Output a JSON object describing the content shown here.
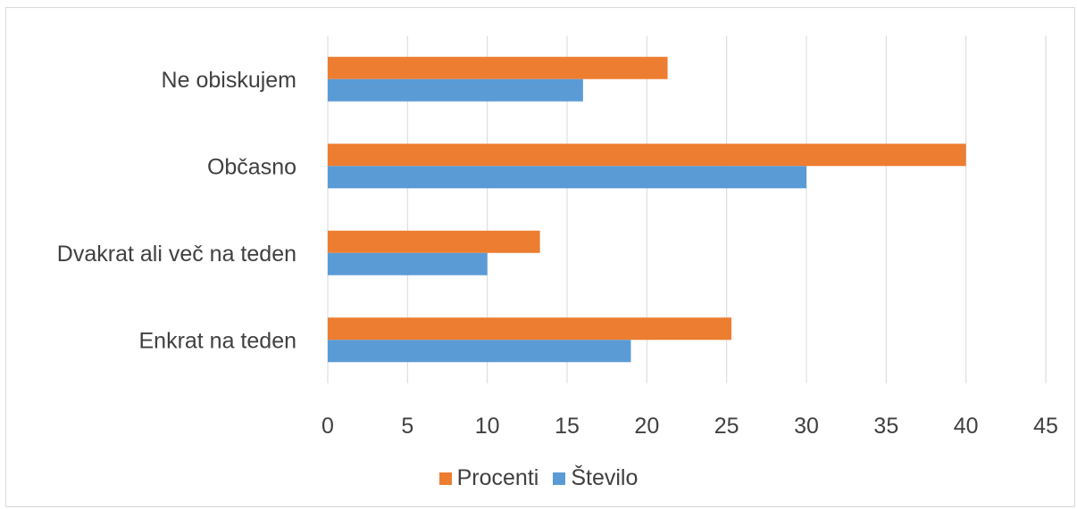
{
  "chart_data": {
    "type": "bar",
    "orientation": "horizontal",
    "categories": [
      "Ne obiskujem",
      "Občasno",
      "Dvakrat ali več na teden",
      "Enkrat na teden"
    ],
    "series": [
      {
        "name": "Procenti",
        "color": "#ed7d31",
        "values": [
          21.3,
          40,
          13.3,
          25.3
        ]
      },
      {
        "name": "Število",
        "color": "#5b9bd5",
        "values": [
          16,
          30,
          10,
          19
        ]
      }
    ],
    "xlim": [
      0,
      45
    ],
    "xticks": [
      0,
      5,
      10,
      15,
      20,
      25,
      30,
      35,
      40,
      45
    ],
    "grid": true,
    "legend_position": "bottom"
  },
  "legend": {
    "items": [
      {
        "label": "Procenti",
        "color": "#ed7d31"
      },
      {
        "label": "Število",
        "color": "#5b9bd5"
      }
    ]
  }
}
